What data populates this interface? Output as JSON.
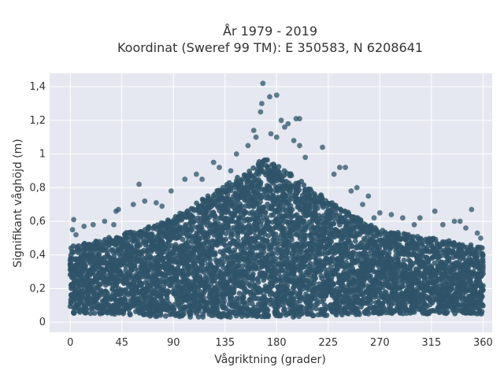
{
  "chart_data": {
    "type": "scatter",
    "title": "År 1979 - 2019",
    "subtitle": "Koordinat (Sweref 99 TM): E 350583, N 6208641",
    "xlabel": "Vågriktning (grader)",
    "ylabel": "Signifikant våghöjd (m)",
    "xlim": [
      -18,
      368
    ],
    "ylim": [
      -0.06,
      1.48
    ],
    "xticks": [
      0,
      45,
      90,
      135,
      180,
      225,
      270,
      315,
      360
    ],
    "xtick_labels": [
      "0",
      "45",
      "90",
      "135",
      "180",
      "225",
      "270",
      "315",
      "360"
    ],
    "yticks": [
      0,
      0.2,
      0.4,
      0.6,
      0.8,
      1.0,
      1.2,
      1.4
    ],
    "ytick_labels": [
      "0",
      "0,2",
      "0,4",
      "0,6",
      "0,8",
      "1",
      "1,2",
      "1,4"
    ],
    "grid": true,
    "marker_color": "#2f5469",
    "background_color": "#e5e8f0",
    "envelope": [
      {
        "x": 0,
        "ymin": 0.05,
        "ymax": 0.45
      },
      {
        "x": 30,
        "ymin": 0.05,
        "ymax": 0.5
      },
      {
        "x": 60,
        "ymin": 0.04,
        "ymax": 0.55
      },
      {
        "x": 90,
        "ymin": 0.03,
        "ymax": 0.62
      },
      {
        "x": 120,
        "ymin": 0.03,
        "ymax": 0.75
      },
      {
        "x": 150,
        "ymin": 0.03,
        "ymax": 0.88
      },
      {
        "x": 170,
        "ymin": 0.03,
        "ymax": 0.98
      },
      {
        "x": 190,
        "ymin": 0.03,
        "ymax": 0.9
      },
      {
        "x": 225,
        "ymin": 0.04,
        "ymax": 0.72
      },
      {
        "x": 270,
        "ymin": 0.05,
        "ymax": 0.55
      },
      {
        "x": 315,
        "ymin": 0.05,
        "ymax": 0.5
      },
      {
        "x": 360,
        "ymin": 0.05,
        "ymax": 0.45
      }
    ],
    "points": [
      {
        "x": 168,
        "y": 1.42
      },
      {
        "x": 174,
        "y": 1.34
      },
      {
        "x": 180,
        "y": 1.35
      },
      {
        "x": 167,
        "y": 1.3
      },
      {
        "x": 166,
        "y": 1.25
      },
      {
        "x": 184,
        "y": 1.2
      },
      {
        "x": 197,
        "y": 1.21
      },
      {
        "x": 200,
        "y": 1.21
      },
      {
        "x": 187,
        "y": 1.16
      },
      {
        "x": 190,
        "y": 1.18
      },
      {
        "x": 160,
        "y": 1.14
      },
      {
        "x": 175,
        "y": 1.12
      },
      {
        "x": 180,
        "y": 1.1
      },
      {
        "x": 195,
        "y": 1.08
      },
      {
        "x": 200,
        "y": 1.05
      },
      {
        "x": 162,
        "y": 1.1
      },
      {
        "x": 155,
        "y": 1.05
      },
      {
        "x": 220,
        "y": 1.04
      },
      {
        "x": 205,
        "y": 0.98
      },
      {
        "x": 145,
        "y": 1.0
      },
      {
        "x": 235,
        "y": 0.92
      },
      {
        "x": 240,
        "y": 0.92
      },
      {
        "x": 230,
        "y": 0.88
      },
      {
        "x": 250,
        "y": 0.8
      },
      {
        "x": 260,
        "y": 0.75
      },
      {
        "x": 125,
        "y": 0.95
      },
      {
        "x": 130,
        "y": 0.92
      },
      {
        "x": 110,
        "y": 0.88
      },
      {
        "x": 100,
        "y": 0.85
      },
      {
        "x": 115,
        "y": 0.85
      },
      {
        "x": 60,
        "y": 0.82
      },
      {
        "x": 88,
        "y": 0.78
      },
      {
        "x": 65,
        "y": 0.72
      },
      {
        "x": 75,
        "y": 0.71
      },
      {
        "x": 55,
        "y": 0.7
      },
      {
        "x": 80,
        "y": 0.69
      },
      {
        "x": 40,
        "y": 0.66
      },
      {
        "x": 42,
        "y": 0.67
      },
      {
        "x": 30,
        "y": 0.6
      },
      {
        "x": 38,
        "y": 0.58
      },
      {
        "x": 20,
        "y": 0.58
      },
      {
        "x": 12,
        "y": 0.57
      },
      {
        "x": 5,
        "y": 0.52
      },
      {
        "x": 2,
        "y": 0.55
      },
      {
        "x": 3,
        "y": 0.61
      },
      {
        "x": 270,
        "y": 0.65
      },
      {
        "x": 280,
        "y": 0.64
      },
      {
        "x": 290,
        "y": 0.62
      },
      {
        "x": 305,
        "y": 0.62
      },
      {
        "x": 318,
        "y": 0.66
      },
      {
        "x": 335,
        "y": 0.6
      },
      {
        "x": 340,
        "y": 0.6
      },
      {
        "x": 345,
        "y": 0.56
      },
      {
        "x": 350,
        "y": 0.67
      },
      {
        "x": 355,
        "y": 0.53
      },
      {
        "x": 358,
        "y": 0.5
      },
      {
        "x": 325,
        "y": 0.58
      },
      {
        "x": 300,
        "y": 0.58
      },
      {
        "x": 265,
        "y": 0.62
      },
      {
        "x": 255,
        "y": 0.7
      },
      {
        "x": 245,
        "y": 0.78
      },
      {
        "x": 150,
        "y": 0.85
      },
      {
        "x": 140,
        "y": 0.9
      }
    ]
  }
}
